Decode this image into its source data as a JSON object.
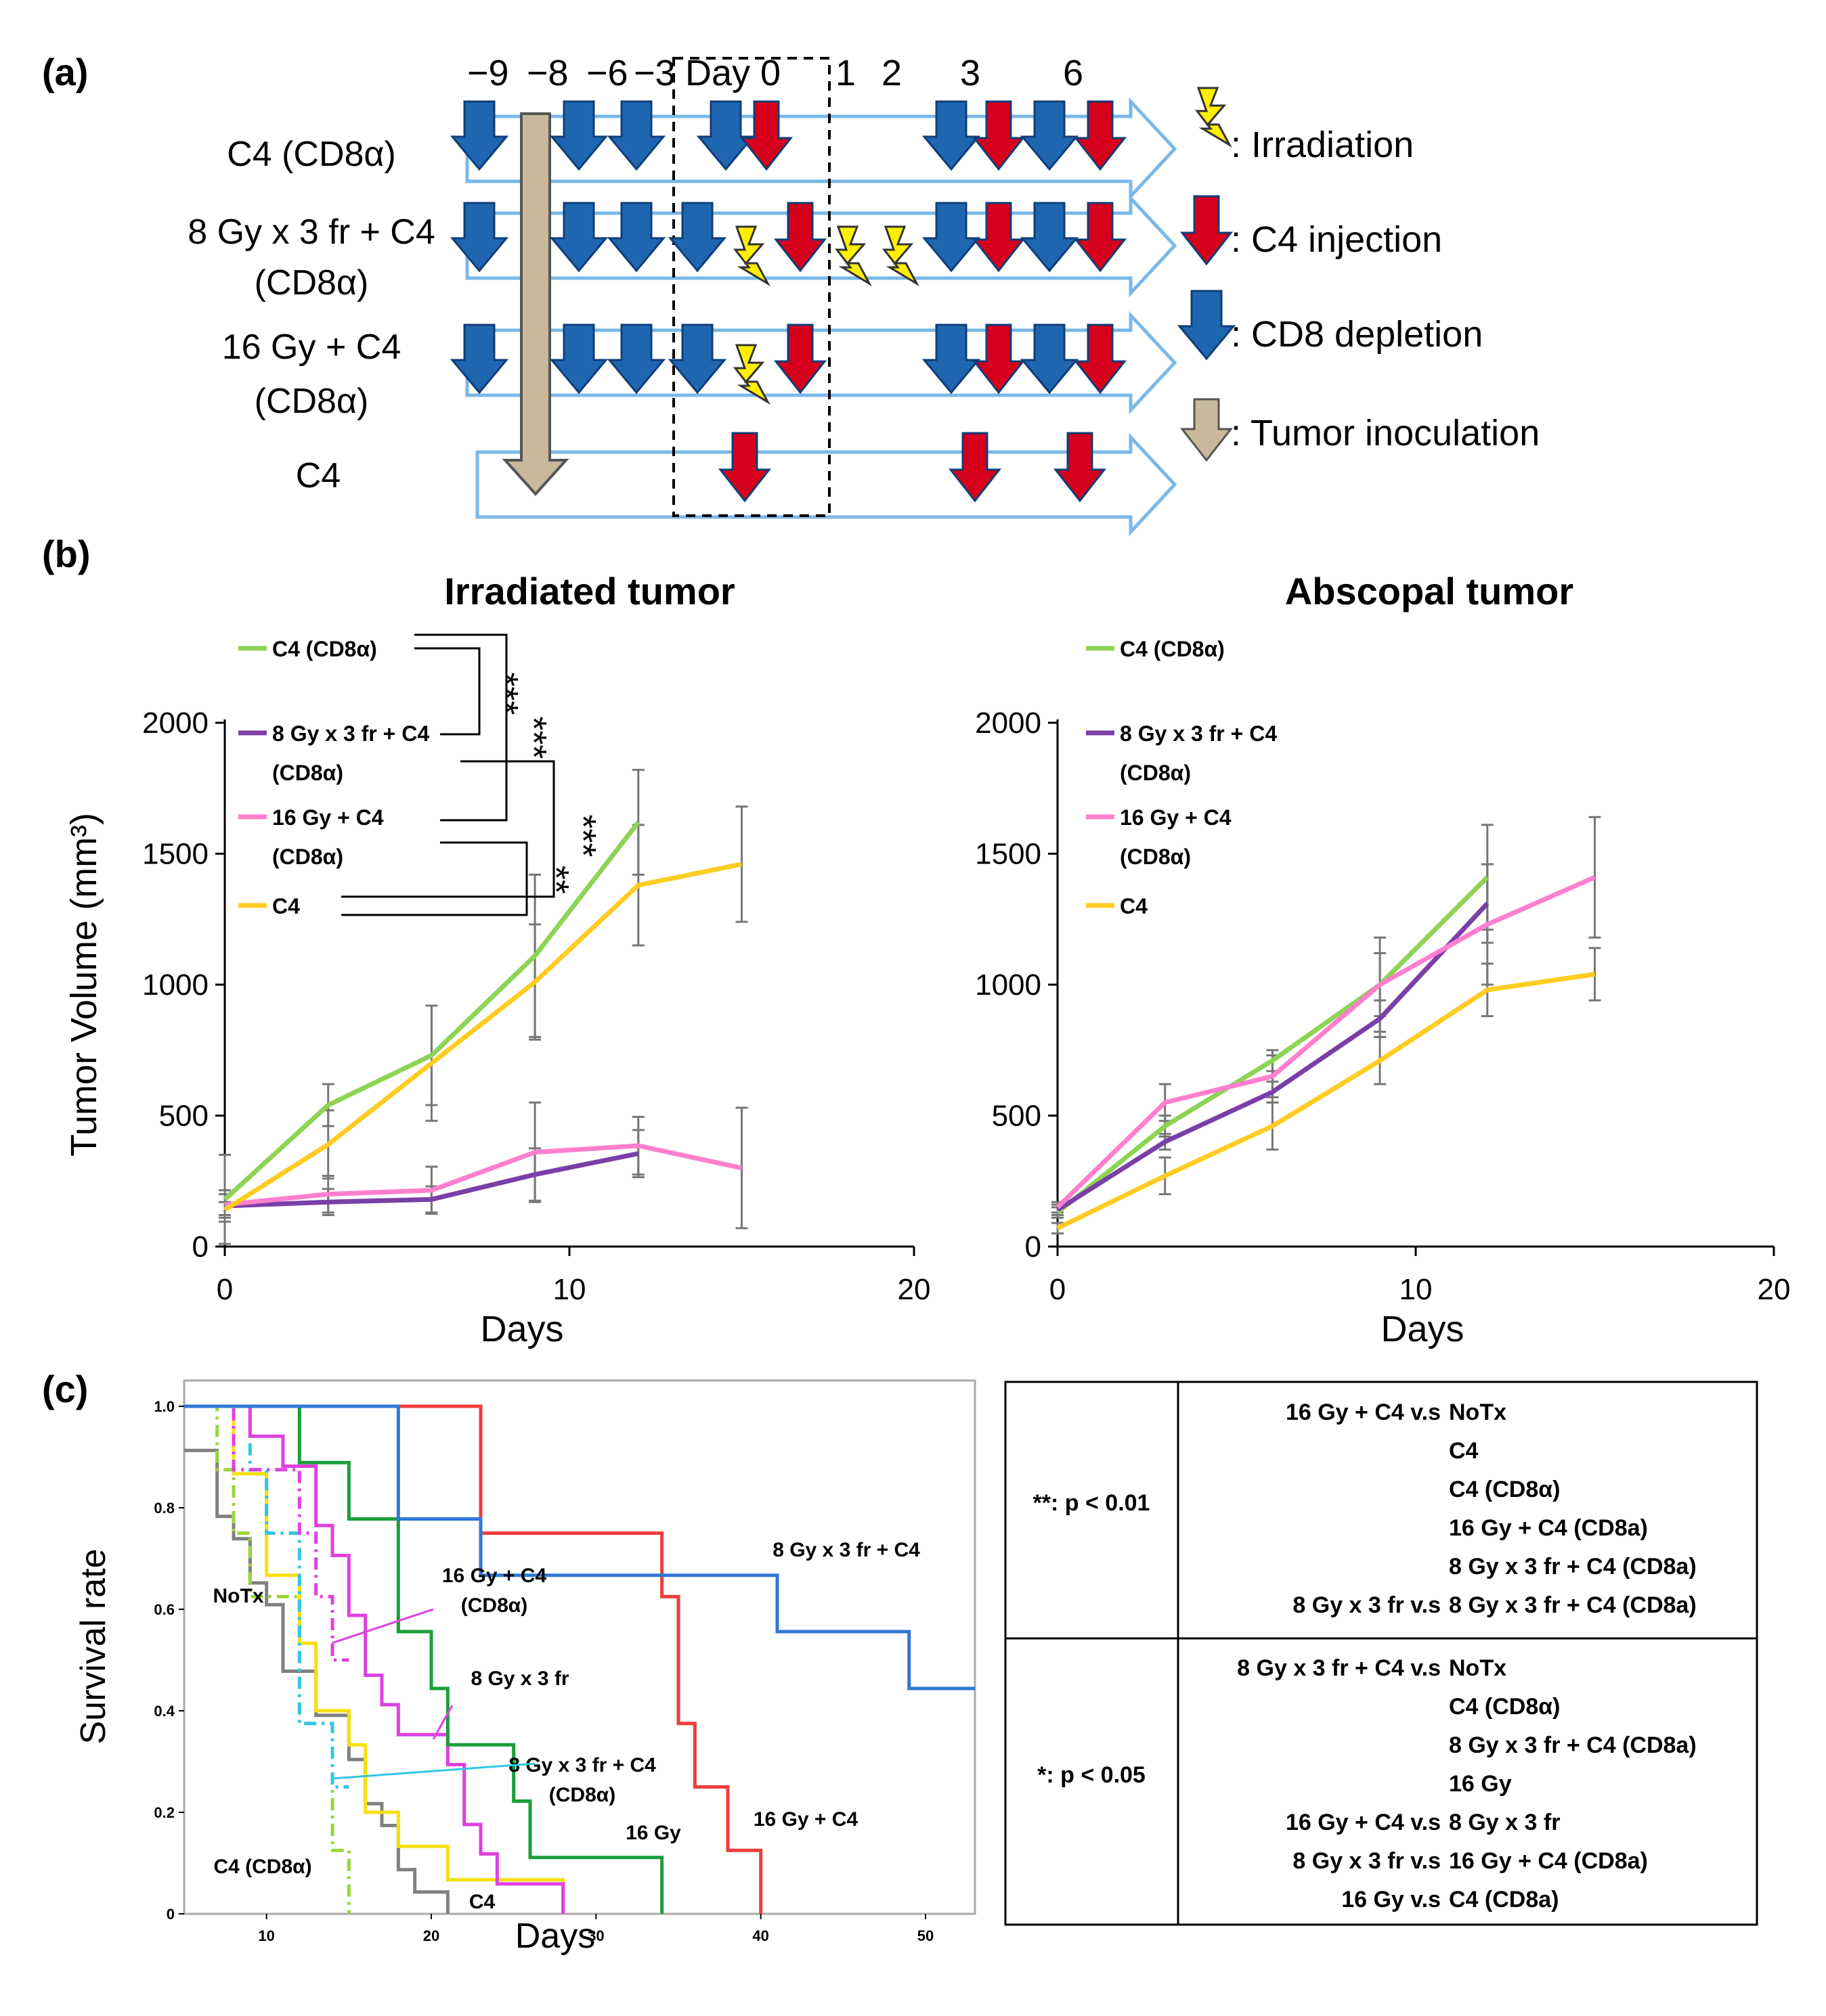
{
  "panel_labels": {
    "a": "(a)",
    "b": "(b)",
    "c": "(c)"
  },
  "colors": {
    "arrow_outline": "#7ab8e8",
    "blue": "#1f66b0",
    "red": "#d6001c",
    "tan": "#c8b99a",
    "green": "#8dd454",
    "purple": "#7a3fa6",
    "pink": "#ff7fcf",
    "yellow": "#ffcc22",
    "c_blue": "#2f78d6",
    "c_red": "#f03c3c",
    "c_magenta": "#e040e0",
    "c_darkgreen": "#1a9e3a",
    "c_lime": "#9ad63a",
    "c_cyan": "#33c6e6",
    "c_gray": "#808080",
    "c_yellow": "#f5e010"
  },
  "schedule": {
    "days": [
      "−9",
      "−8",
      "−6",
      "−3",
      "Day 0",
      "1",
      "2",
      "3",
      "6"
    ],
    "rows": [
      {
        "label": "C4 (CD8α)",
        "label2": ""
      },
      {
        "label": "8 Gy x 3 fr + C4",
        "label2": "(CD8α)"
      },
      {
        "label": "16 Gy + C4",
        "label2": "(CD8α)"
      },
      {
        "label": "C4",
        "label2": ""
      }
    ],
    "legend": [
      {
        "icon": "bolt-icon",
        "text": ": Irradiation"
      },
      {
        "icon": "red-arrow-icon",
        "text": ": C4 injection"
      },
      {
        "icon": "blue-arrow-icon",
        "text": ": CD8 depletion"
      },
      {
        "icon": "tan-arrow-icon",
        "text": ": Tumor inoculation"
      }
    ]
  },
  "chart_data": [
    {
      "type": "line",
      "title": "Irradiated tumor",
      "xlabel": "Days",
      "ylabel": "Tumor Volume (mm³)",
      "xlim": [
        0,
        20
      ],
      "ylim": [
        0,
        2000
      ],
      "xticks": [
        0,
        10,
        20
      ],
      "yticks": [
        0,
        500,
        1000,
        1500,
        2000
      ],
      "series": [
        {
          "name": "C4 (CD8α)",
          "color": "#8dd454",
          "x": [
            0,
            3,
            6,
            9,
            12
          ],
          "y": [
            180,
            540,
            730,
            1110,
            1620
          ],
          "err": [
            170,
            80,
            190,
            310,
            200
          ]
        },
        {
          "name": "8 Gy x 3 fr + C4 (CD8α)",
          "color": "#7a3fa6",
          "x": [
            0,
            3,
            6,
            9,
            12
          ],
          "y": [
            155,
            170,
            180,
            275,
            355
          ],
          "err": [
            60,
            50,
            50,
            100,
            90
          ]
        },
        {
          "name": "16 Gy + C4 (CD8α)",
          "color": "#ff7fcf",
          "x": [
            0,
            3,
            6,
            9,
            12,
            15
          ],
          "y": [
            160,
            200,
            215,
            360,
            385,
            300
          ],
          "err": [
            40,
            70,
            90,
            190,
            110,
            230
          ]
        },
        {
          "name": "C4",
          "color": "#ffcc22",
          "x": [
            0,
            3,
            6,
            9,
            12,
            15
          ],
          "y": [
            140,
            390,
            700,
            1010,
            1380,
            1460
          ],
          "err": [
            30,
            130,
            220,
            220,
            230,
            220
          ]
        }
      ],
      "significance": [
        "***",
        "***",
        "***",
        "**"
      ]
    },
    {
      "type": "line",
      "title": "Abscopal tumor",
      "xlabel": "Days",
      "ylabel": "",
      "xlim": [
        0,
        20
      ],
      "ylim": [
        0,
        2000
      ],
      "xticks": [
        0,
        10,
        20
      ],
      "yticks": [
        0,
        500,
        1000,
        1500,
        2000
      ],
      "series": [
        {
          "name": "C4 (CD8α)",
          "color": "#8dd454",
          "x": [
            0,
            3,
            6,
            9,
            12
          ],
          "y": [
            130,
            460,
            710,
            1000,
            1410
          ],
          "err": [
            20,
            40,
            40,
            180,
            200
          ]
        },
        {
          "name": "8 Gy x 3 fr + C4 (CD8α)",
          "color": "#7a3fa6",
          "x": [
            0,
            3,
            6,
            9,
            12
          ],
          "y": [
            140,
            400,
            590,
            870,
            1310
          ],
          "err": [
            20,
            30,
            40,
            70,
            150
          ]
        },
        {
          "name": "16 Gy + C4 (CD8α)",
          "color": "#ff7fcf",
          "x": [
            0,
            3,
            6,
            9,
            12,
            15
          ],
          "y": [
            150,
            550,
            650,
            1000,
            1230,
            1410
          ],
          "err": [
            20,
            70,
            80,
            120,
            230,
            230
          ]
        },
        {
          "name": "C4",
          "color": "#ffcc22",
          "x": [
            0,
            3,
            6,
            9,
            12,
            15
          ],
          "y": [
            70,
            270,
            460,
            710,
            980,
            1040
          ],
          "err": [
            20,
            70,
            90,
            90,
            100,
            100
          ]
        }
      ]
    },
    {
      "type": "line",
      "subtype": "kaplan-meier",
      "xlabel": "Days",
      "ylabel": "Survival rate",
      "xlim": [
        5,
        53
      ],
      "ylim": [
        0,
        1.0
      ],
      "xticks": [
        10,
        20,
        30,
        40,
        50
      ],
      "yticks": [
        0,
        0.2,
        0.4,
        0.6,
        0.8,
        1.0
      ],
      "ytick_labels": [
        "0",
        "0.2",
        "0.4",
        "0.6",
        "0.8",
        "1.0"
      ],
      "series": [
        {
          "name": "NoTx",
          "color": "#808080",
          "dash": false,
          "x": [
            5,
            7,
            8,
            9,
            10,
            11,
            13,
            15,
            16,
            17,
            18,
            19,
            20,
            21
          ],
          "y": [
            0.913,
            0.783,
            0.739,
            0.652,
            0.609,
            0.478,
            0.391,
            0.304,
            0.217,
            0.174,
            0.087,
            0.043,
            0.043,
            0
          ]
        },
        {
          "name": "C4",
          "color": "#f5e010",
          "dash": false,
          "x": [
            5,
            8,
            10,
            12,
            13,
            15,
            16,
            18,
            21,
            28
          ],
          "y": [
            1.0,
            0.867,
            0.667,
            0.533,
            0.4,
            0.333,
            0.2,
            0.133,
            0.067,
            0
          ]
        },
        {
          "name": "C4 (CD8α)",
          "color": "#9ad63a",
          "dash": true,
          "x": [
            5,
            7,
            8,
            9,
            12,
            14,
            15
          ],
          "y": [
            1.0,
            0.875,
            0.75,
            0.625,
            0.375,
            0.125,
            0
          ]
        },
        {
          "name": "8 Gy x 3 fr + C4 (CD8α)",
          "color": "#33c6e6",
          "dash": true,
          "x": [
            5,
            9,
            10,
            12,
            14,
            15
          ],
          "y": [
            1.0,
            0.875,
            0.75,
            0.375,
            0.25,
            0.25
          ]
        },
        {
          "name": "16 Gy + C4 (CD8α)",
          "color": "#e040e0",
          "dash": true,
          "x": [
            5,
            8,
            12,
            13,
            14,
            15
          ],
          "y": [
            1.0,
            0.875,
            0.75,
            0.625,
            0.5,
            0.5
          ]
        },
        {
          "name": "8 Gy x 3 fr",
          "color": "#e040e0",
          "dash": false,
          "x": [
            5,
            9,
            11,
            13,
            14,
            15,
            16,
            17,
            18,
            21,
            22,
            23,
            24,
            28
          ],
          "y": [
            1.0,
            0.941,
            0.882,
            0.765,
            0.706,
            0.588,
            0.47,
            0.412,
            0.353,
            0.294,
            0.176,
            0.118,
            0.059,
            0
          ]
        },
        {
          "name": "16 Gy",
          "color": "#1a9e3a",
          "dash": false,
          "x": [
            5,
            12,
            15,
            18,
            20,
            21,
            25,
            26,
            34
          ],
          "y": [
            1.0,
            0.889,
            0.778,
            0.556,
            0.444,
            0.333,
            0.222,
            0.111,
            0
          ]
        },
        {
          "name": "16 Gy + C4",
          "color": "#f03c3c",
          "dash": false,
          "x": [
            5,
            23,
            34,
            35,
            36,
            38,
            40
          ],
          "y": [
            1.0,
            0.75,
            0.625,
            0.375,
            0.25,
            0.125,
            0
          ]
        },
        {
          "name": "8 Gy x 3 fr + C4",
          "color": "#2f78d6",
          "dash": false,
          "x": [
            5,
            18,
            23,
            41,
            49,
            53
          ],
          "y": [
            1.0,
            0.778,
            0.667,
            0.556,
            0.444,
            0.444
          ]
        }
      ]
    }
  ],
  "stats_table": {
    "groups": [
      {
        "label": "**: p < 0.01",
        "rows": [
          {
            "a": "16 Gy + C4 v.s",
            "b": "NoTx"
          },
          {
            "a": "",
            "b": "C4"
          },
          {
            "a": "",
            "b": "C4 (CD8α)"
          },
          {
            "a": "",
            "b": "16 Gy + C4 (CD8a)"
          },
          {
            "a": "",
            "b": "8 Gy x 3 fr + C4 (CD8a)"
          },
          {
            "a": "8 Gy x 3 fr   v.s",
            "b": "8 Gy x 3 fr + C4 (CD8a)"
          }
        ]
      },
      {
        "label": "*: p < 0.05",
        "rows": [
          {
            "a": "8 Gy x 3 fr + C4  v.s",
            "b": "NoTx"
          },
          {
            "a": "",
            "b": "C4 (CD8α)"
          },
          {
            "a": "",
            "b": "8 Gy x 3 fr + C4 (CD8a)"
          },
          {
            "a": "",
            "b": "16 Gy"
          },
          {
            "a": "16 Gy + C4 v.s",
            "b": "8 Gy x 3 fr"
          },
          {
            "a": "8 Gy x 3 fr   v.s",
            "b": "16 Gy + C4 (CD8a)"
          },
          {
            "a": "16 Gy  v.s",
            "b": "C4 (CD8a)"
          }
        ]
      }
    ]
  }
}
